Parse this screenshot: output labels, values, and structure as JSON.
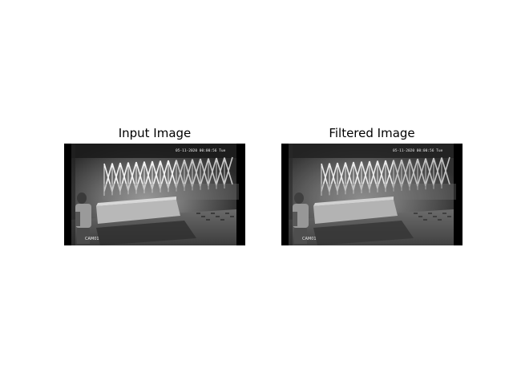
{
  "figure": {
    "left_title": "Input Image",
    "right_title": "Filtered Image"
  },
  "frames": {
    "left": {
      "timestamp": "05-11-2020 00:00:56 Tue",
      "camera": "CAM01",
      "style": "input"
    },
    "right": {
      "timestamp": "05-11-2020 00:00:56 Tue",
      "camera": "CAM01",
      "style": "filtered"
    }
  }
}
